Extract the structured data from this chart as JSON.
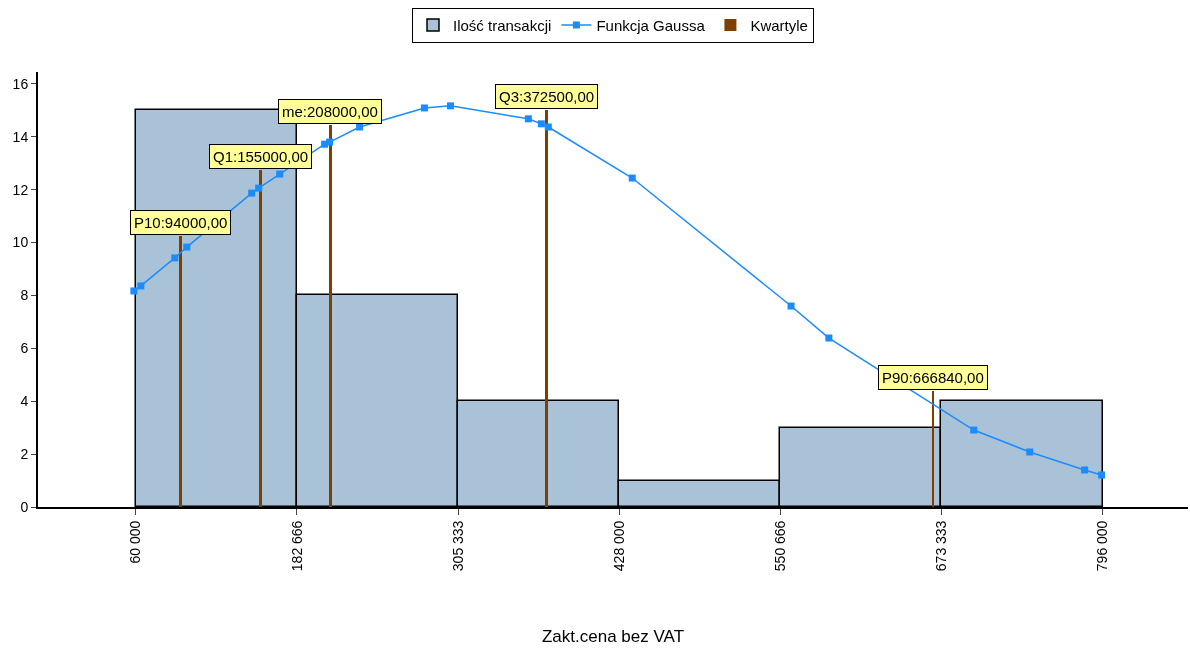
{
  "chart_data": {
    "type": "histogram",
    "xlabel": "Zakt.cena bez VAT",
    "xlim": [
      -14500,
      861000
    ],
    "xticks": [
      {
        "value": 60000,
        "label": "60 000"
      },
      {
        "value": 182666,
        "label": "182 666"
      },
      {
        "value": 305333,
        "label": "305 333"
      },
      {
        "value": 428000,
        "label": "428 000"
      },
      {
        "value": 550666,
        "label": "550 666"
      },
      {
        "value": 673333,
        "label": "673 333"
      },
      {
        "value": 796000,
        "label": "796 000"
      }
    ],
    "ylim": [
      0,
      16.45
    ],
    "yticks": [
      0,
      2,
      4,
      6,
      8,
      10,
      12,
      14,
      16
    ],
    "grid": false,
    "legend": "top",
    "series": [
      {
        "name": "Ilość transakcji",
        "color": "#a9c2d7",
        "bins": [
          60000,
          182666,
          305333,
          428000,
          550666,
          673333,
          796000
        ],
        "values": [
          15,
          8,
          4,
          1,
          3,
          4
        ]
      },
      {
        "name": "Funkcja Gaussa",
        "type": "line",
        "color": "#1a8cff",
        "marker": "square",
        "line_style": "solid",
        "x": [
          58500,
          63800,
          89650,
          98780,
          148200,
          153500,
          169500,
          203700,
          207500,
          230300,
          279700,
          299500,
          358800,
          368700,
          374000,
          437900,
          558800,
          587600,
          697900,
          740500,
          782300,
          795200
        ],
        "values": [
          8.17,
          8.36,
          9.42,
          9.83,
          11.87,
          12.06,
          12.59,
          13.72,
          13.8,
          14.37,
          15.09,
          15.17,
          14.68,
          14.49,
          14.37,
          12.44,
          7.6,
          6.39,
          2.91,
          2.08,
          1.4,
          1.21
        ]
      },
      {
        "name": "Kwartyle",
        "type": "bar",
        "color": "#7f3f00",
        "x": [
          94000,
          155000,
          208000,
          372500,
          666840
        ],
        "values": [
          10.25,
          12.75,
          14.45,
          15.0,
          4.4
        ]
      }
    ],
    "annotations": [
      {
        "text": "P10:94000,00",
        "x": 94000,
        "y": 10.25
      },
      {
        "text": "Q1:155000,00",
        "x": 155000,
        "y": 12.75
      },
      {
        "text": "me:208000,00",
        "x": 208000,
        "y": 14.45
      },
      {
        "text": "Q3:372500,00",
        "x": 372500,
        "y": 15.0
      },
      {
        "text": "P90:666840,00",
        "x": 666840,
        "y": 4.4
      }
    ]
  }
}
